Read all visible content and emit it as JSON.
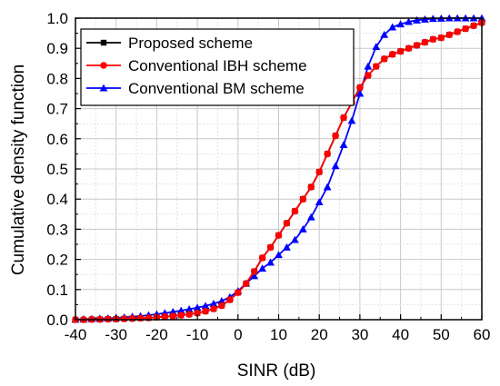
{
  "chart_data": {
    "type": "line",
    "title": "",
    "xlabel": "SINR (dB)",
    "ylabel": "Cumulative density function",
    "xlim": [
      -40,
      60
    ],
    "ylim": [
      0,
      1.0
    ],
    "xticks": [
      "-40",
      "-30",
      "-20",
      "-10",
      "0",
      "10",
      "20",
      "30",
      "40",
      "50",
      "60"
    ],
    "yticks": [
      "0.0",
      "0.1",
      "0.2",
      "0.3",
      "0.4",
      "0.5",
      "0.6",
      "0.7",
      "0.8",
      "0.9",
      "1.0"
    ],
    "grid": true,
    "legend_position": "top-left",
    "series": [
      {
        "name": "Proposed scheme",
        "color": "#000000",
        "marker": "square",
        "x": [
          -40,
          -38,
          -36,
          -34,
          -32,
          -30,
          -28,
          -26,
          -24,
          -22,
          -20,
          -18,
          -16,
          -14,
          -12,
          -10,
          -8,
          -6,
          -4,
          -2,
          0,
          2,
          4,
          6,
          8,
          10,
          12,
          14,
          16,
          18,
          20,
          22,
          24,
          26,
          28,
          30,
          32,
          34,
          36,
          38,
          40,
          42,
          44,
          46,
          48,
          50,
          52,
          54,
          56,
          58,
          60
        ],
        "y": [
          0.0,
          0.0,
          0.001,
          0.001,
          0.002,
          0.002,
          0.003,
          0.004,
          0.005,
          0.006,
          0.008,
          0.01,
          0.012,
          0.015,
          0.018,
          0.022,
          0.028,
          0.036,
          0.047,
          0.066,
          0.09,
          0.12,
          0.16,
          0.205,
          0.24,
          0.28,
          0.32,
          0.36,
          0.4,
          0.44,
          0.49,
          0.55,
          0.61,
          0.67,
          0.72,
          0.77,
          0.81,
          0.84,
          0.865,
          0.88,
          0.89,
          0.9,
          0.91,
          0.92,
          0.93,
          0.935,
          0.945,
          0.955,
          0.965,
          0.975,
          0.985
        ]
      },
      {
        "name": "Conventional IBH scheme",
        "color": "#ff0000",
        "marker": "circle",
        "x": [
          -40,
          -38,
          -36,
          -34,
          -32,
          -30,
          -28,
          -26,
          -24,
          -22,
          -20,
          -18,
          -16,
          -14,
          -12,
          -10,
          -8,
          -6,
          -4,
          -2,
          0,
          2,
          4,
          6,
          8,
          10,
          12,
          14,
          16,
          18,
          20,
          22,
          24,
          26,
          28,
          30,
          32,
          34,
          36,
          38,
          40,
          42,
          44,
          46,
          48,
          50,
          52,
          54,
          56,
          58,
          60
        ],
        "y": [
          0.0,
          0.0,
          0.001,
          0.001,
          0.002,
          0.002,
          0.003,
          0.004,
          0.005,
          0.006,
          0.008,
          0.01,
          0.012,
          0.015,
          0.018,
          0.022,
          0.028,
          0.036,
          0.047,
          0.066,
          0.09,
          0.12,
          0.16,
          0.205,
          0.24,
          0.28,
          0.32,
          0.36,
          0.4,
          0.44,
          0.49,
          0.55,
          0.61,
          0.67,
          0.72,
          0.77,
          0.81,
          0.84,
          0.865,
          0.88,
          0.89,
          0.9,
          0.91,
          0.92,
          0.93,
          0.935,
          0.945,
          0.955,
          0.965,
          0.975,
          0.985
        ]
      },
      {
        "name": "Conventional BM scheme",
        "color": "#0000ff",
        "marker": "triangle",
        "x": [
          -40,
          -38,
          -36,
          -34,
          -32,
          -30,
          -28,
          -26,
          -24,
          -22,
          -20,
          -18,
          -16,
          -14,
          -12,
          -10,
          -8,
          -6,
          -4,
          -2,
          0,
          2,
          4,
          6,
          8,
          10,
          12,
          14,
          16,
          18,
          20,
          22,
          24,
          26,
          28,
          30,
          32,
          34,
          36,
          38,
          40,
          42,
          44,
          46,
          48,
          50,
          52,
          54,
          56,
          58,
          60
        ],
        "y": [
          0.001,
          0.002,
          0.003,
          0.004,
          0.005,
          0.006,
          0.008,
          0.01,
          0.012,
          0.015,
          0.018,
          0.022,
          0.026,
          0.03,
          0.035,
          0.04,
          0.046,
          0.053,
          0.062,
          0.075,
          0.095,
          0.12,
          0.145,
          0.17,
          0.19,
          0.215,
          0.24,
          0.265,
          0.3,
          0.34,
          0.39,
          0.44,
          0.51,
          0.58,
          0.66,
          0.75,
          0.84,
          0.905,
          0.945,
          0.97,
          0.98,
          0.988,
          0.993,
          0.996,
          0.998,
          0.999,
          1.0,
          1.0,
          1.0,
          1.0,
          1.0
        ]
      }
    ]
  }
}
